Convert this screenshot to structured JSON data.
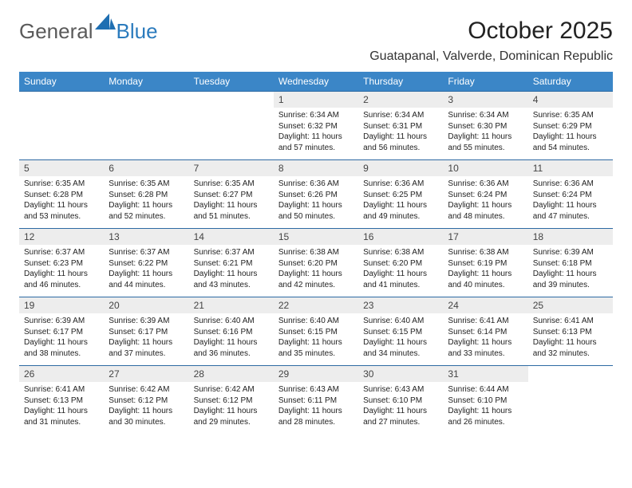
{
  "logo": {
    "general": "General",
    "blue": "Blue"
  },
  "title": "October 2025",
  "location": "Guatapanal, Valverde, Dominican Republic",
  "colors": {
    "header_bg": "#3b86c7",
    "header_text": "#ffffff",
    "row_divider": "#2d6aa3",
    "daynum_bg": "#ededed",
    "logo_gray": "#5a5a5a",
    "logo_blue": "#2b7bbd",
    "page_bg": "#ffffff"
  },
  "columns": [
    "Sunday",
    "Monday",
    "Tuesday",
    "Wednesday",
    "Thursday",
    "Friday",
    "Saturday"
  ],
  "weeks": [
    [
      {
        "day": "",
        "sunrise": "",
        "sunset": "",
        "daylight": ""
      },
      {
        "day": "",
        "sunrise": "",
        "sunset": "",
        "daylight": ""
      },
      {
        "day": "",
        "sunrise": "",
        "sunset": "",
        "daylight": ""
      },
      {
        "day": "1",
        "sunrise": "Sunrise: 6:34 AM",
        "sunset": "Sunset: 6:32 PM",
        "daylight": "Daylight: 11 hours and 57 minutes."
      },
      {
        "day": "2",
        "sunrise": "Sunrise: 6:34 AM",
        "sunset": "Sunset: 6:31 PM",
        "daylight": "Daylight: 11 hours and 56 minutes."
      },
      {
        "day": "3",
        "sunrise": "Sunrise: 6:34 AM",
        "sunset": "Sunset: 6:30 PM",
        "daylight": "Daylight: 11 hours and 55 minutes."
      },
      {
        "day": "4",
        "sunrise": "Sunrise: 6:35 AM",
        "sunset": "Sunset: 6:29 PM",
        "daylight": "Daylight: 11 hours and 54 minutes."
      }
    ],
    [
      {
        "day": "5",
        "sunrise": "Sunrise: 6:35 AM",
        "sunset": "Sunset: 6:28 PM",
        "daylight": "Daylight: 11 hours and 53 minutes."
      },
      {
        "day": "6",
        "sunrise": "Sunrise: 6:35 AM",
        "sunset": "Sunset: 6:28 PM",
        "daylight": "Daylight: 11 hours and 52 minutes."
      },
      {
        "day": "7",
        "sunrise": "Sunrise: 6:35 AM",
        "sunset": "Sunset: 6:27 PM",
        "daylight": "Daylight: 11 hours and 51 minutes."
      },
      {
        "day": "8",
        "sunrise": "Sunrise: 6:36 AM",
        "sunset": "Sunset: 6:26 PM",
        "daylight": "Daylight: 11 hours and 50 minutes."
      },
      {
        "day": "9",
        "sunrise": "Sunrise: 6:36 AM",
        "sunset": "Sunset: 6:25 PM",
        "daylight": "Daylight: 11 hours and 49 minutes."
      },
      {
        "day": "10",
        "sunrise": "Sunrise: 6:36 AM",
        "sunset": "Sunset: 6:24 PM",
        "daylight": "Daylight: 11 hours and 48 minutes."
      },
      {
        "day": "11",
        "sunrise": "Sunrise: 6:36 AM",
        "sunset": "Sunset: 6:24 PM",
        "daylight": "Daylight: 11 hours and 47 minutes."
      }
    ],
    [
      {
        "day": "12",
        "sunrise": "Sunrise: 6:37 AM",
        "sunset": "Sunset: 6:23 PM",
        "daylight": "Daylight: 11 hours and 46 minutes."
      },
      {
        "day": "13",
        "sunrise": "Sunrise: 6:37 AM",
        "sunset": "Sunset: 6:22 PM",
        "daylight": "Daylight: 11 hours and 44 minutes."
      },
      {
        "day": "14",
        "sunrise": "Sunrise: 6:37 AM",
        "sunset": "Sunset: 6:21 PM",
        "daylight": "Daylight: 11 hours and 43 minutes."
      },
      {
        "day": "15",
        "sunrise": "Sunrise: 6:38 AM",
        "sunset": "Sunset: 6:20 PM",
        "daylight": "Daylight: 11 hours and 42 minutes."
      },
      {
        "day": "16",
        "sunrise": "Sunrise: 6:38 AM",
        "sunset": "Sunset: 6:20 PM",
        "daylight": "Daylight: 11 hours and 41 minutes."
      },
      {
        "day": "17",
        "sunrise": "Sunrise: 6:38 AM",
        "sunset": "Sunset: 6:19 PM",
        "daylight": "Daylight: 11 hours and 40 minutes."
      },
      {
        "day": "18",
        "sunrise": "Sunrise: 6:39 AM",
        "sunset": "Sunset: 6:18 PM",
        "daylight": "Daylight: 11 hours and 39 minutes."
      }
    ],
    [
      {
        "day": "19",
        "sunrise": "Sunrise: 6:39 AM",
        "sunset": "Sunset: 6:17 PM",
        "daylight": "Daylight: 11 hours and 38 minutes."
      },
      {
        "day": "20",
        "sunrise": "Sunrise: 6:39 AM",
        "sunset": "Sunset: 6:17 PM",
        "daylight": "Daylight: 11 hours and 37 minutes."
      },
      {
        "day": "21",
        "sunrise": "Sunrise: 6:40 AM",
        "sunset": "Sunset: 6:16 PM",
        "daylight": "Daylight: 11 hours and 36 minutes."
      },
      {
        "day": "22",
        "sunrise": "Sunrise: 6:40 AM",
        "sunset": "Sunset: 6:15 PM",
        "daylight": "Daylight: 11 hours and 35 minutes."
      },
      {
        "day": "23",
        "sunrise": "Sunrise: 6:40 AM",
        "sunset": "Sunset: 6:15 PM",
        "daylight": "Daylight: 11 hours and 34 minutes."
      },
      {
        "day": "24",
        "sunrise": "Sunrise: 6:41 AM",
        "sunset": "Sunset: 6:14 PM",
        "daylight": "Daylight: 11 hours and 33 minutes."
      },
      {
        "day": "25",
        "sunrise": "Sunrise: 6:41 AM",
        "sunset": "Sunset: 6:13 PM",
        "daylight": "Daylight: 11 hours and 32 minutes."
      }
    ],
    [
      {
        "day": "26",
        "sunrise": "Sunrise: 6:41 AM",
        "sunset": "Sunset: 6:13 PM",
        "daylight": "Daylight: 11 hours and 31 minutes."
      },
      {
        "day": "27",
        "sunrise": "Sunrise: 6:42 AM",
        "sunset": "Sunset: 6:12 PM",
        "daylight": "Daylight: 11 hours and 30 minutes."
      },
      {
        "day": "28",
        "sunrise": "Sunrise: 6:42 AM",
        "sunset": "Sunset: 6:12 PM",
        "daylight": "Daylight: 11 hours and 29 minutes."
      },
      {
        "day": "29",
        "sunrise": "Sunrise: 6:43 AM",
        "sunset": "Sunset: 6:11 PM",
        "daylight": "Daylight: 11 hours and 28 minutes."
      },
      {
        "day": "30",
        "sunrise": "Sunrise: 6:43 AM",
        "sunset": "Sunset: 6:10 PM",
        "daylight": "Daylight: 11 hours and 27 minutes."
      },
      {
        "day": "31",
        "sunrise": "Sunrise: 6:44 AM",
        "sunset": "Sunset: 6:10 PM",
        "daylight": "Daylight: 11 hours and 26 minutes."
      },
      {
        "day": "",
        "sunrise": "",
        "sunset": "",
        "daylight": ""
      }
    ]
  ]
}
